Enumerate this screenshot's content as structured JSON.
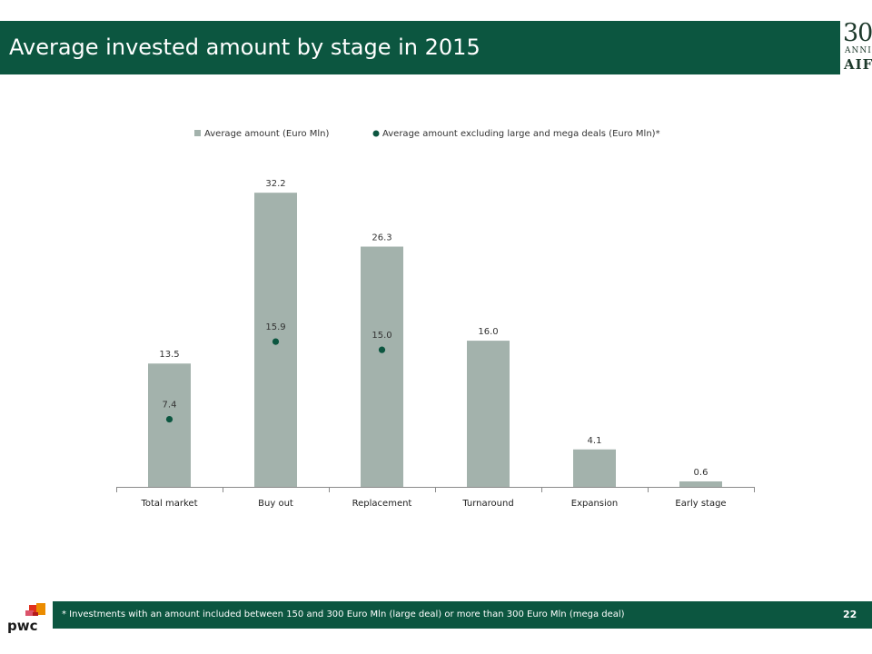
{
  "header": {
    "title": "Average invested amount by stage in 2015",
    "logo": {
      "number": "30",
      "subtitle": "ANNI",
      "name": "AIFI"
    }
  },
  "chart_data": {
    "type": "bar",
    "categories": [
      "Total market",
      "Buy out",
      "Replacement",
      "Turnaround",
      "Expansion",
      "Early stage"
    ],
    "series": [
      {
        "name": "Average amount (Euro Mln)",
        "kind": "bar",
        "color": "#a3b2ac",
        "values": [
          13.5,
          32.2,
          26.3,
          16.0,
          4.1,
          0.6
        ],
        "labels": [
          "13.5",
          "32.2",
          "26.3",
          "16.0",
          "4.1",
          "0.6"
        ]
      },
      {
        "name": "Average amount excluding large and mega deals (Euro Mln)*",
        "kind": "marker",
        "color": "#0c5640",
        "values": [
          7.4,
          15.9,
          15.0,
          null,
          null,
          null
        ],
        "labels": [
          "7.4",
          "15.9",
          "15.0",
          "",
          "",
          ""
        ]
      }
    ],
    "ylim": [
      0,
      35
    ],
    "legend": "top",
    "grid": false
  },
  "footer": {
    "footnote": "* Investments with an amount included between 150 and 300 Euro Mln (large deal) or more than 300 Euro Mln (mega deal)",
    "page_number": "22",
    "brand": "pwc"
  },
  "colors": {
    "accent": "#0c5640",
    "bar": "#a3b2ac",
    "logo_orange": "#e0301e",
    "logo_amber": "#eb8c00",
    "logo_rose": "#db536a"
  }
}
